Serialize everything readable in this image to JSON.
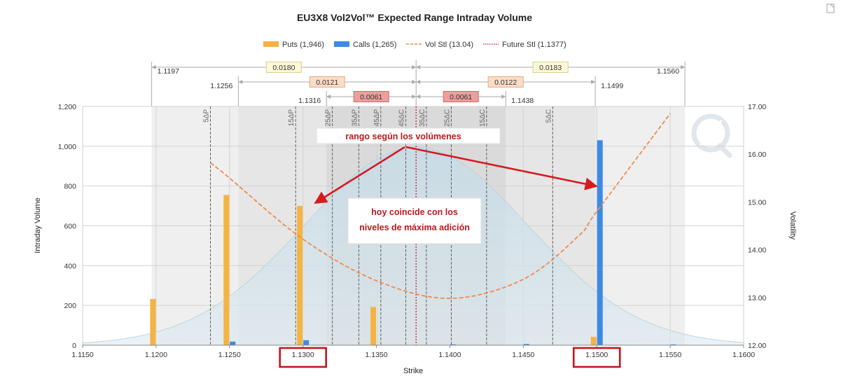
{
  "chart_data": {
    "type": "bar",
    "title": "EU3X8 Vol2Vol™ Expected Range Intraday Volume",
    "xlabel": "Strike",
    "ylabel": "Intraday Volume",
    "y2label": "Volatility",
    "xlim": [
      1.115,
      1.16
    ],
    "ylim": [
      0,
      1200
    ],
    "y2lim": [
      12.0,
      17.0
    ],
    "x_ticks": [
      "1.1150",
      "1.1200",
      "1.1250",
      "1.1300",
      "1.1350",
      "1.1400",
      "1.1450",
      "1.1500",
      "1.1550",
      "1.1600"
    ],
    "y_ticks": [
      "0",
      "200",
      "400",
      "600",
      "800",
      "1,000",
      "1,200"
    ],
    "y2_ticks": [
      "12.00",
      "13.00",
      "14.00",
      "15.00",
      "16.00",
      "17.00"
    ],
    "legend": [
      {
        "label": "Puts (1,946)",
        "color": "#f5b342",
        "kind": "bar"
      },
      {
        "label": "Calls (1,265)",
        "color": "#3d8ae5",
        "kind": "bar"
      },
      {
        "label": "Vol Stl (13.04)",
        "color": "#ef8a4f",
        "kind": "dash"
      },
      {
        "label": "Future Stl (1.1377)",
        "color": "#c0171c",
        "kind": "dot"
      }
    ],
    "legend_position": "top-center",
    "series": [
      {
        "name": "Puts",
        "color": "#f5b342",
        "x": [
          1.12,
          1.125,
          1.13,
          1.135,
          1.15
        ],
        "values": [
          232,
          755,
          700,
          192,
          42
        ]
      },
      {
        "name": "Calls",
        "color": "#3d8ae5",
        "x": [
          1.125,
          1.13,
          1.14,
          1.145,
          1.15,
          1.155
        ],
        "values": [
          18,
          25,
          4,
          6,
          1030,
          4
        ]
      },
      {
        "name": "Vol Stl",
        "color": "#ef8a4f",
        "axis": "secondary",
        "x": [
          1.1237,
          1.125,
          1.13,
          1.135,
          1.14,
          1.145,
          1.1488,
          1.15,
          1.155
        ],
        "values": [
          15.82,
          15.5,
          14.22,
          13.35,
          12.98,
          13.38,
          14.3,
          14.8,
          16.85
        ]
      }
    ],
    "future_settle": 1.1377,
    "normal_curve": {
      "mean": 1.1377,
      "sd": 0.0076,
      "peak_fraction": 0.83
    },
    "delta_lines": [
      {
        "label": "5ΔP",
        "x": 1.1237
      },
      {
        "label": "15ΔP",
        "x": 1.1295
      },
      {
        "label": "25ΔP",
        "x": 1.132
      },
      {
        "label": "35ΔP",
        "x": 1.1338
      },
      {
        "label": "45ΔP",
        "x": 1.1353
      },
      {
        "label": "45ΔC",
        "x": 1.137
      },
      {
        "label": "35ΔC",
        "x": 1.1384
      },
      {
        "label": "25ΔC",
        "x": 1.1401
      },
      {
        "label": "15ΔC",
        "x": 1.1425
      },
      {
        "label": "5ΔC",
        "x": 1.147
      }
    ],
    "ranges": [
      {
        "low_label": "1.1197",
        "high_label": "1.1560",
        "low": 1.1197,
        "high": 1.156,
        "left_box": "0.0180",
        "right_box": "0.0183",
        "fill": "#fdf8d8",
        "stroke": "#d8cf8a"
      },
      {
        "low_label": "1.1256",
        "high_label": "1.1499",
        "low": 1.1256,
        "high": 1.1499,
        "left_box": "0.0121",
        "right_box": "0.0122",
        "fill": "#fbdcc6",
        "stroke": "#e9aa85"
      },
      {
        "low_label": "1.1316",
        "high_label": "1.1438",
        "low": 1.1316,
        "high": 1.1438,
        "left_box": "0.0061",
        "right_box": "0.0061",
        "fill": "#ee9d9d",
        "stroke": "#d06c6c"
      }
    ],
    "annotations": [
      {
        "text": "rango según los volúmenes"
      },
      {
        "text": "hoy coincide con los niveles de máxima adición"
      }
    ],
    "highlighted_ticks": [
      "1.1300",
      "1.1500"
    ]
  },
  "colors": {
    "puts": "#f5b342",
    "calls": "#3d8ae5",
    "vol": "#ef8a4f",
    "future": "#c0171c",
    "highlight": "#c0171c"
  },
  "icons": {
    "watermark": "vol2vol-logo-icon",
    "corner": "page-corner-icon"
  }
}
